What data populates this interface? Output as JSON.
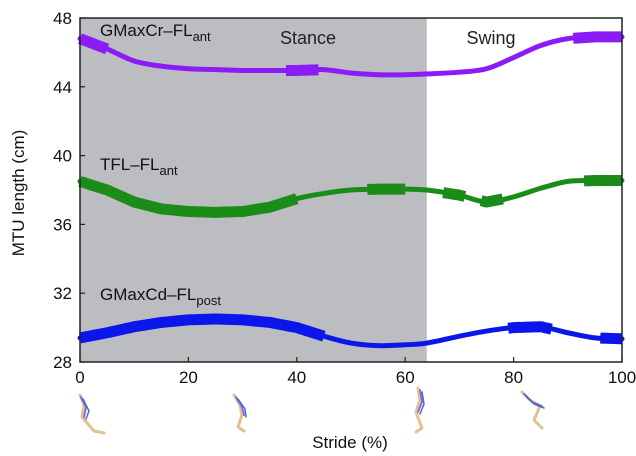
{
  "chart_data": {
    "type": "line",
    "xlabel": "Stride (%)",
    "ylabel": "MTU length (cm)",
    "xlim": [
      0,
      100
    ],
    "ylim": [
      28,
      48
    ],
    "xticks": [
      "0",
      "20",
      "40",
      "60",
      "80",
      "100"
    ],
    "yticks": [
      "28",
      "32",
      "36",
      "40",
      "44",
      "48"
    ],
    "grid": false,
    "phases": [
      {
        "label": "Stance",
        "start": 0,
        "end": 64,
        "color": "#bcbdc0"
      },
      {
        "label": "Swing",
        "start": 64,
        "end": 100,
        "color": "#ffffff"
      }
    ],
    "series": [
      {
        "name": "GMaxCr–FL",
        "subscript": "ant",
        "color": "#8b1cf5",
        "x": [
          0,
          5,
          10,
          15,
          20,
          25,
          30,
          35,
          40,
          45,
          50,
          55,
          60,
          64,
          70,
          75,
          80,
          85,
          90,
          95,
          100
        ],
        "y": [
          46.8,
          46.2,
          45.5,
          45.2,
          45.05,
          45.0,
          44.95,
          44.95,
          44.95,
          45.0,
          44.8,
          44.7,
          44.7,
          44.75,
          44.85,
          45.05,
          45.7,
          46.4,
          46.8,
          46.9,
          46.9
        ],
        "thick": [
          [
            0,
            5
          ],
          [
            38,
            44
          ],
          [
            91,
            100
          ]
        ]
      },
      {
        "name": "TFL–FL",
        "subscript": "ant",
        "color": "#1a8c17",
        "x": [
          0,
          5,
          10,
          15,
          20,
          25,
          30,
          35,
          40,
          45,
          50,
          55,
          60,
          64,
          70,
          75,
          80,
          85,
          90,
          95,
          100
        ],
        "y": [
          38.5,
          38.0,
          37.3,
          36.9,
          36.75,
          36.7,
          36.75,
          37.0,
          37.5,
          37.8,
          38.0,
          38.05,
          38.05,
          38.0,
          37.7,
          37.3,
          37.6,
          38.1,
          38.5,
          38.55,
          38.55
        ],
        "thick": [
          [
            0,
            40
          ],
          [
            53,
            60
          ],
          [
            67,
            71
          ],
          [
            74,
            78
          ],
          [
            93,
            100
          ]
        ]
      },
      {
        "name": "GMaxCd–FL",
        "subscript": "post",
        "color": "#0b16ea",
        "x": [
          0,
          5,
          10,
          15,
          20,
          25,
          30,
          35,
          40,
          45,
          50,
          55,
          60,
          64,
          70,
          75,
          80,
          85,
          90,
          95,
          100
        ],
        "y": [
          29.4,
          29.7,
          30.05,
          30.3,
          30.45,
          30.5,
          30.45,
          30.3,
          30.0,
          29.5,
          29.1,
          28.95,
          29.0,
          29.1,
          29.5,
          29.8,
          30.0,
          30.05,
          29.7,
          29.4,
          29.35
        ],
        "thick": [
          [
            0,
            45
          ],
          [
            79,
            87
          ],
          [
            96,
            100
          ]
        ]
      }
    ]
  }
}
